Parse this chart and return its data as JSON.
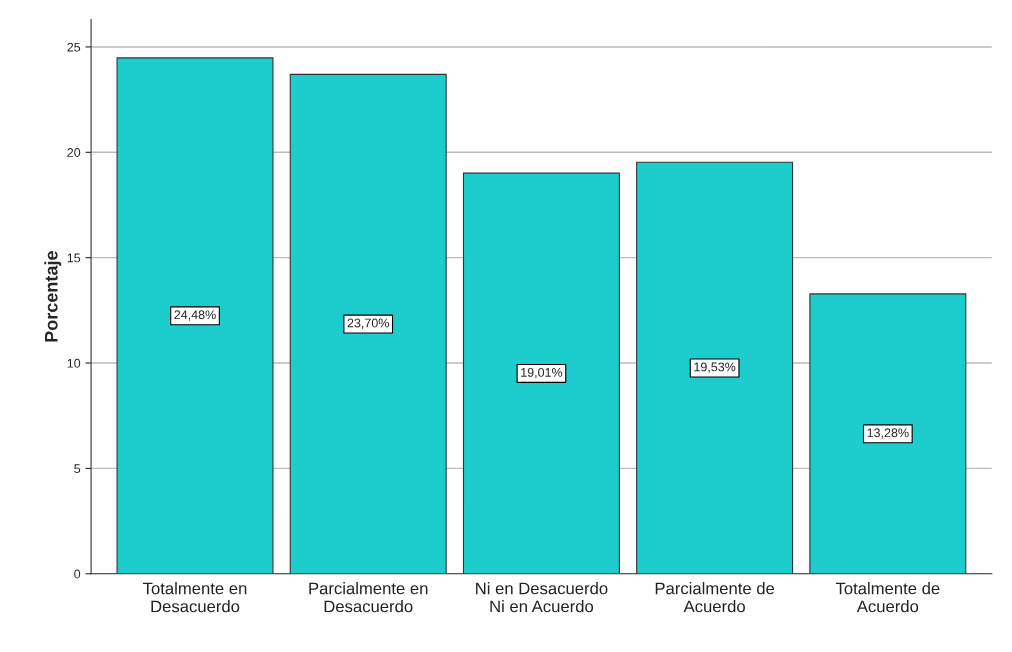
{
  "chart_data": {
    "type": "bar",
    "ylabel": "Porcentaje",
    "categories": [
      "Totalmente en\nDesacuerdo",
      "Parcialmente en\nDesacuerdo",
      "Ni en Desacuerdo\nNi en Acuerdo",
      "Parcialmente de\nAcuerdo",
      "Totalmente de\nAcuerdo"
    ],
    "values": [
      24.48,
      23.7,
      19.01,
      19.53,
      13.28
    ],
    "value_labels": [
      "24,48%",
      "23,70%",
      "19,01%",
      "19,53%",
      "13,28%"
    ],
    "color": "#1dcdcd",
    "ylim": [
      0,
      26.3
    ],
    "yticks": [
      0,
      5,
      10,
      15,
      20,
      25
    ],
    "grid": "y",
    "legend": false
  }
}
